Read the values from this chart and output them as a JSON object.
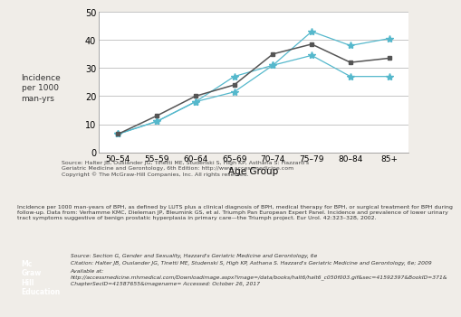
{
  "x_labels": [
    "50–54",
    "55–59",
    "60–64",
    "65–69",
    "70–74",
    "75–79",
    "80–84",
    "85+"
  ],
  "x_values": [
    0,
    1,
    2,
    3,
    4,
    5,
    6,
    7
  ],
  "series_dark": [
    6.5,
    13,
    20,
    24,
    35,
    38.5,
    32,
    33.5
  ],
  "series_cyan_upper": [
    6.5,
    11,
    18,
    27,
    31,
    43,
    38,
    40.5
  ],
  "series_cyan_lower": [
    6.5,
    11,
    18,
    21.5,
    31,
    34.5,
    27,
    27
  ],
  "dark_color": "#555555",
  "cyan_color": "#55b8cc",
  "ylabel": "Incidence\nper 1000\nman-yrs",
  "xlabel": "Age Group",
  "ylim": [
    0,
    50
  ],
  "yticks": [
    0,
    10,
    20,
    30,
    40,
    50
  ],
  "bg_color": "#ffffff",
  "fig_bg_color": "#f0ede8",
  "grid_color": "#bbbbbb",
  "source_text": "Source: Halter JB, Ouslander JG, Tinetti ME, Studenski S, High KP, Asthana S: Hazzard's\nGeriatric Medicine and Gerontology, 6th Edition: http://www.accessmedicine.com\nCopyright © The McGraw-Hill Companies, Inc. All rights reserved.",
  "incidence_text": "Incidence per 1000 man-years of BPH, as defined by LUTS plus a clinical diagnosis of BPH, medical therapy for BPH, or surgical treatment for BPH during\nfollow-up. Data from: Verhamme KMC, Dieleman JP, Bleumink GS, et al. Triumph Pan European Expert Panel. Incidence and prevalence of lower urinary\ntract symptoms suggestive of benign prostatic hyperplasia in primary care—the Triumph project. Eur Urol. 42:323–328, 2002.",
  "footer_source": "Source: Section G, Gender and Sexuality, Hazzard's Geriatric Medicine and Gerontology, 6e",
  "footer_citation": "Citation: Halter JB, Ouslander JG, Tinetti ME, Studenski S, High KP, Asthana S. Hazzard's Geriatric Medicine and Gerontology, 6e; 2009",
  "footer_available": "Available at:",
  "footer_url": "http://accessmedicine.mhmedical.com/Downloadimage.aspx?image=/data/books/halt6/halt6_c050f003.gif&sec=41592397&BookID=371&\nChapterSecID=41587655&imagename= Accessed: October 26, 2017"
}
